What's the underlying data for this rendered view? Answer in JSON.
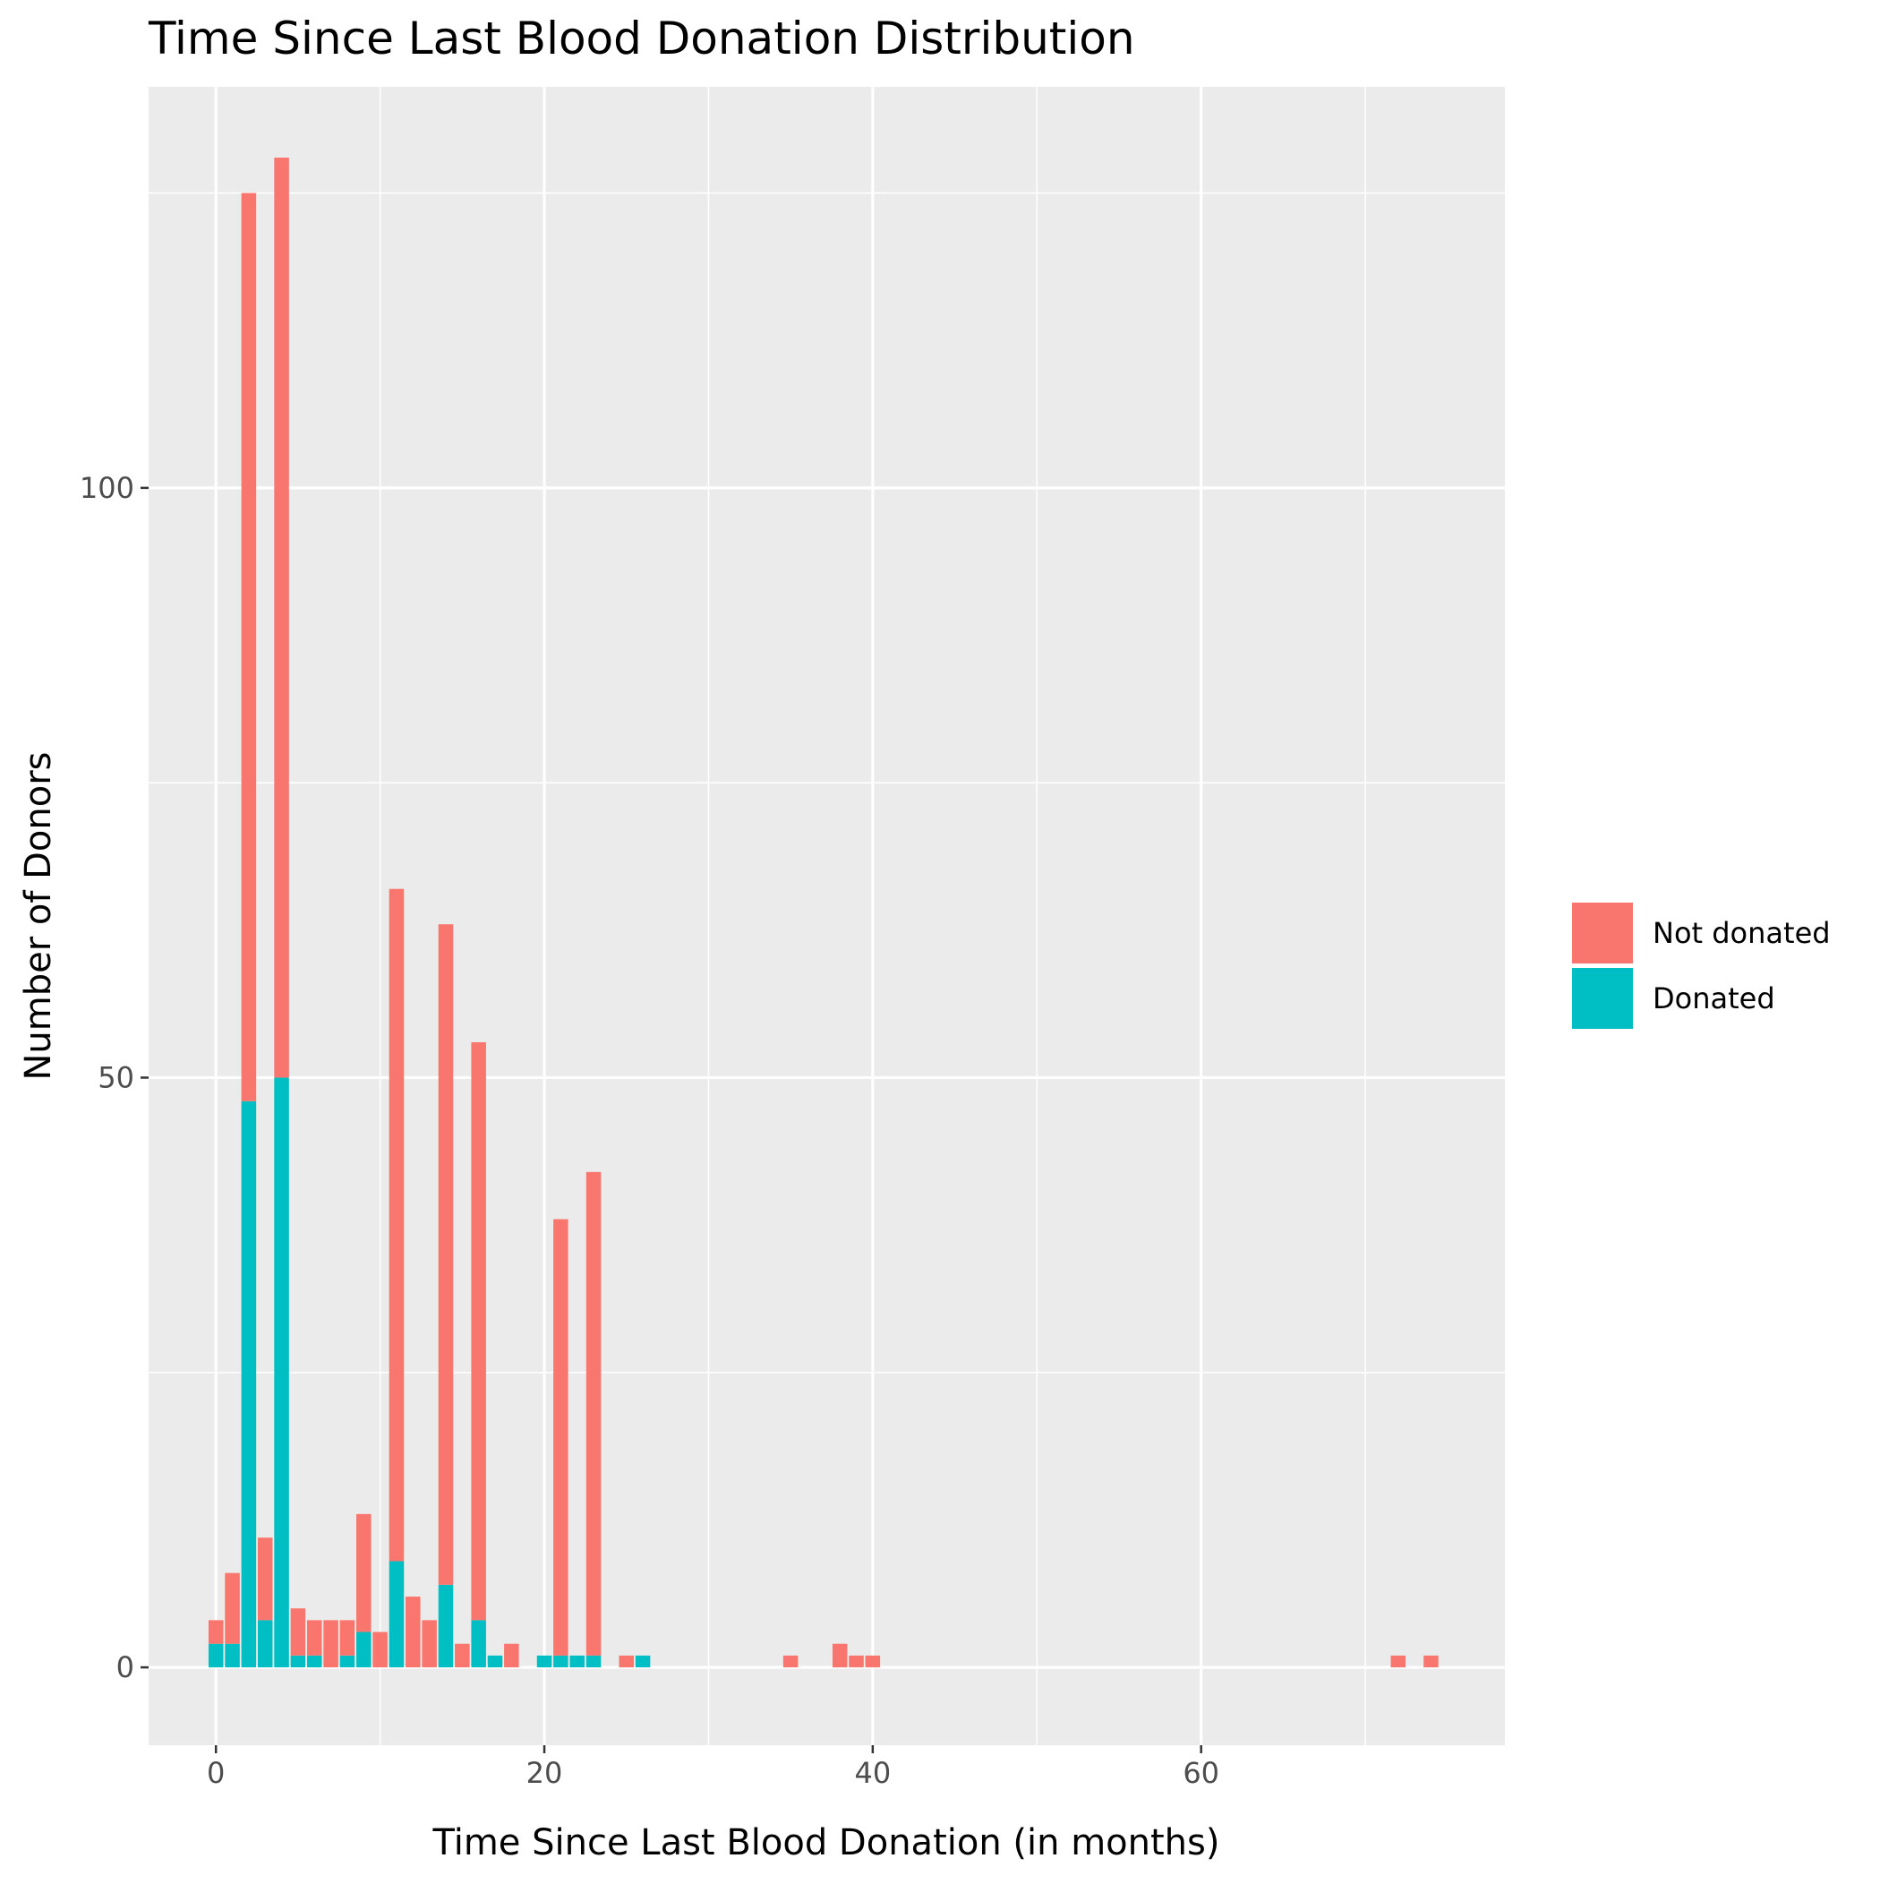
{
  "chart_data": {
    "type": "bar",
    "stacked": true,
    "title": "Time Since Last Blood Donation Distribution",
    "xlabel": "Time Since Last Blood Donation (in months)",
    "ylabel": "Number of Donors",
    "xlim": [
      -4.1,
      78.5
    ],
    "ylim": [
      -6.6,
      134
    ],
    "x_ticks": [
      0,
      20,
      40,
      60
    ],
    "y_ticks": [
      0,
      50,
      100
    ],
    "grid": true,
    "legend_position": "right",
    "series": [
      {
        "name": "Not donated",
        "color": "#F8766D",
        "x": [
          0,
          1,
          2,
          3,
          4,
          5,
          6,
          7,
          8,
          9,
          10,
          11,
          12,
          13,
          14,
          15,
          16,
          18,
          21,
          23,
          25,
          35,
          38,
          39,
          40,
          72,
          74
        ],
        "values": [
          2,
          6,
          77,
          7,
          78,
          4,
          3,
          4,
          3,
          10,
          3,
          57,
          6,
          4,
          56,
          2,
          49,
          2,
          37,
          41,
          1,
          1,
          2,
          1,
          1,
          1,
          1
        ]
      },
      {
        "name": "Donated",
        "color": "#00BFC4",
        "x": [
          0,
          1,
          2,
          3,
          4,
          5,
          6,
          8,
          9,
          11,
          14,
          16,
          17,
          20,
          21,
          22,
          23,
          26
        ],
        "values": [
          2,
          2,
          48,
          4,
          50,
          1,
          1,
          1,
          3,
          9,
          7,
          4,
          1,
          1,
          1,
          1,
          1,
          1
        ]
      }
    ]
  }
}
